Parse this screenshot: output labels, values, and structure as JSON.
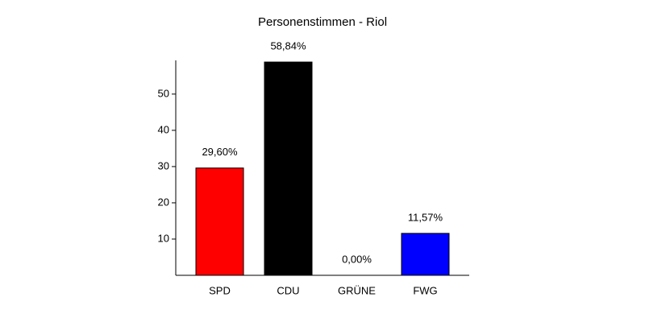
{
  "chart_data": {
    "type": "bar",
    "title": "Personenstimmen - Riol",
    "categories": [
      "SPD",
      "CDU",
      "GRÜNE",
      "FWG"
    ],
    "values": [
      29.6,
      58.84,
      0.0,
      11.57
    ],
    "value_labels": [
      "29,60%",
      "58,84%",
      "0,00%",
      "11,57%"
    ],
    "colors": [
      "#ff0000",
      "#000000",
      "#00a000",
      "#0000ff"
    ],
    "ylim": [
      0,
      59.3
    ],
    "yticks": [
      10,
      20,
      30,
      40,
      50
    ]
  }
}
